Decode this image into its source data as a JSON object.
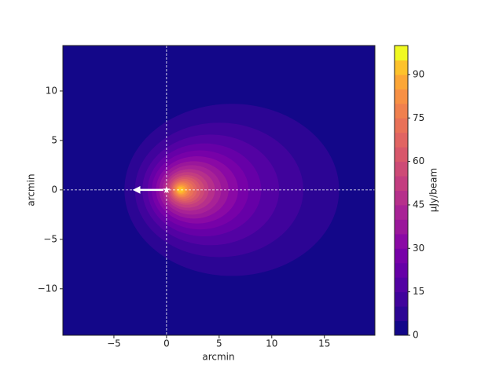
{
  "chart_data": {
    "type": "contour",
    "xlabel": "arcmin",
    "ylabel": "arcmin",
    "colorbar_label": "μJy/beam",
    "xlim": [
      -9.85,
      19.8
    ],
    "ylim": [
      -14.7,
      14.6
    ],
    "xticks": [
      {
        "value": -5,
        "label": "−5"
      },
      0,
      5,
      10,
      15
    ],
    "yticks": [
      {
        "value": -10,
        "label": "−10"
      },
      {
        "value": -5,
        "label": "−5"
      },
      0,
      5,
      10
    ],
    "levels": [
      0,
      5,
      10,
      15,
      20,
      25,
      30,
      35,
      40,
      45,
      50,
      55,
      60,
      65,
      70,
      75,
      80,
      85,
      90,
      95,
      100
    ],
    "colors": [
      "#130789",
      "#2c0594",
      "#40039c",
      "#5302a3",
      "#6600a7",
      "#7701a8",
      "#8a09a5",
      "#9a179b",
      "#a82296",
      "#b6308b",
      "#c33d80",
      "#cd4a76",
      "#d8576b",
      "#e16462",
      "#e97158",
      "#f0804e",
      "#f79044",
      "#fca636",
      "#fdc22b",
      "#f0f921"
    ],
    "cbar_ticks": [
      0,
      15,
      30,
      45,
      60,
      75,
      90
    ],
    "contours": [
      {
        "level": 5,
        "cx": 6.2,
        "cy": 0,
        "rx": 10.2,
        "ry": 8.7
      },
      {
        "level": 10,
        "cx": 5.0,
        "cy": 0,
        "rx": 8.0,
        "ry": 6.8
      },
      {
        "level": 15,
        "cx": 4.2,
        "cy": 0,
        "rx": 6.5,
        "ry": 5.6
      },
      {
        "level": 20,
        "cx": 3.6,
        "cy": 0,
        "rx": 5.4,
        "ry": 4.7
      },
      {
        "level": 25,
        "cx": 3.2,
        "cy": 0,
        "rx": 4.6,
        "ry": 4.0
      },
      {
        "level": 30,
        "cx": 2.9,
        "cy": 0,
        "rx": 3.9,
        "ry": 3.4
      },
      {
        "level": 35,
        "cx": 2.6,
        "cy": 0,
        "rx": 3.3,
        "ry": 2.9
      },
      {
        "level": 40,
        "cx": 2.4,
        "cy": 0,
        "rx": 2.8,
        "ry": 2.5
      },
      {
        "level": 45,
        "cx": 2.2,
        "cy": 0,
        "rx": 2.4,
        "ry": 2.1
      },
      {
        "level": 50,
        "cx": 2.0,
        "cy": 0,
        "rx": 2.0,
        "ry": 1.8
      },
      {
        "level": 55,
        "cx": 1.9,
        "cy": 0,
        "rx": 1.7,
        "ry": 1.5
      },
      {
        "level": 60,
        "cx": 1.8,
        "cy": 0,
        "rx": 1.45,
        "ry": 1.3
      },
      {
        "level": 65,
        "cx": 1.7,
        "cy": 0,
        "rx": 1.2,
        "ry": 1.1
      },
      {
        "level": 70,
        "cx": 1.6,
        "cy": 0,
        "rx": 1.0,
        "ry": 0.9
      },
      {
        "level": 75,
        "cx": 1.5,
        "cy": 0,
        "rx": 0.8,
        "ry": 0.75
      },
      {
        "level": 80,
        "cx": 1.45,
        "cy": 0,
        "rx": 0.6,
        "ry": 0.6
      },
      {
        "level": 85,
        "cx": 1.4,
        "cy": 0,
        "rx": 0.45,
        "ry": 0.45
      },
      {
        "level": 90,
        "cx": 1.35,
        "cy": 0,
        "rx": 0.3,
        "ry": 0.3
      }
    ],
    "crosshair": {
      "x": 0,
      "y": 0
    },
    "arrow": {
      "x": [
        -0.3,
        -3.3
      ],
      "y": [
        0,
        0
      ]
    },
    "marker": {
      "x": 0,
      "y": 0
    }
  }
}
